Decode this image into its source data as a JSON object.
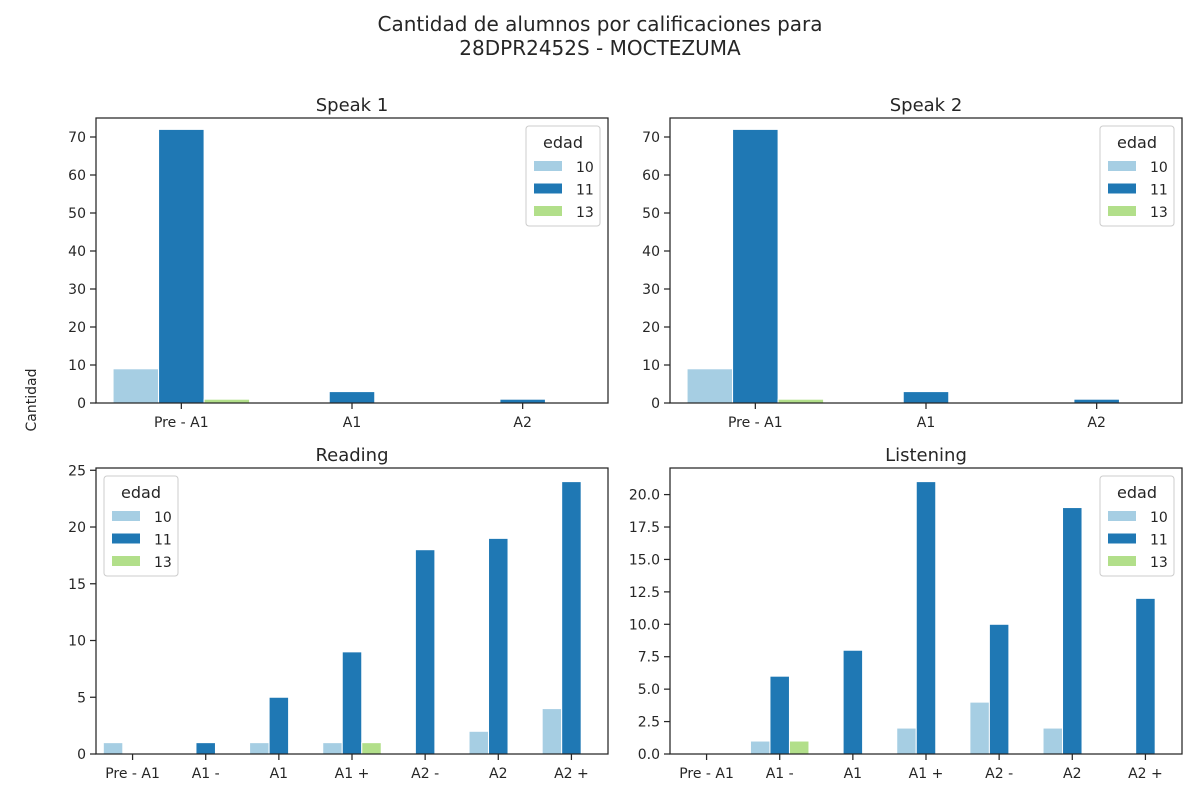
{
  "title_line1": "Cantidad de alumnos por calificaciones para",
  "title_line2": "28DPR2452S - MOCTEZUMA",
  "shared_ylabel": "Cantidad",
  "colors": {
    "10": "#a6cee3",
    "11": "#1f78b4",
    "13": "#b2df8a"
  },
  "chart_data": [
    {
      "type": "bar",
      "title": "Speak 1",
      "categories": [
        "Pre - A1",
        "A1",
        "A2"
      ],
      "ylim": [
        0,
        75
      ],
      "yticks": [
        0,
        10,
        20,
        30,
        40,
        50,
        60,
        70
      ],
      "legend": {
        "title": "edad",
        "placement": "upper-right"
      },
      "series": [
        {
          "name": "10",
          "values": [
            9,
            0,
            0
          ]
        },
        {
          "name": "11",
          "values": [
            72,
            3,
            1
          ]
        },
        {
          "name": "13",
          "values": [
            1,
            0,
            0
          ]
        }
      ]
    },
    {
      "type": "bar",
      "title": "Speak 2",
      "categories": [
        "Pre - A1",
        "A1",
        "A2"
      ],
      "ylim": [
        0,
        75
      ],
      "yticks": [
        0,
        10,
        20,
        30,
        40,
        50,
        60,
        70
      ],
      "legend": {
        "title": "edad",
        "placement": "upper-right"
      },
      "series": [
        {
          "name": "10",
          "values": [
            9,
            0,
            0
          ]
        },
        {
          "name": "11",
          "values": [
            72,
            3,
            1
          ]
        },
        {
          "name": "13",
          "values": [
            1,
            0,
            0
          ]
        }
      ]
    },
    {
      "type": "bar",
      "title": "Reading",
      "categories": [
        "Pre - A1",
        "A1 -",
        "A1",
        "A1 +",
        "A2 -",
        "A2",
        "A2 +"
      ],
      "ylim": [
        0,
        25.2
      ],
      "yticks": [
        0,
        5,
        10,
        15,
        20,
        25
      ],
      "legend": {
        "title": "edad",
        "placement": "upper-left"
      },
      "series": [
        {
          "name": "10",
          "values": [
            1,
            0,
            1,
            1,
            0,
            2,
            4
          ]
        },
        {
          "name": "11",
          "values": [
            0,
            1,
            5,
            9,
            18,
            19,
            24
          ]
        },
        {
          "name": "13",
          "values": [
            0,
            0,
            0,
            1,
            0,
            0,
            0
          ]
        }
      ]
    },
    {
      "type": "bar",
      "title": "Listening",
      "categories": [
        "Pre - A1",
        "A1 -",
        "A1",
        "A1 +",
        "A2 -",
        "A2",
        "A2 +"
      ],
      "ylim": [
        0,
        22.05
      ],
      "yticks": [
        0.0,
        2.5,
        5.0,
        7.5,
        10.0,
        12.5,
        15.0,
        17.5,
        20.0
      ],
      "ytick_labels": [
        "0.0",
        "2.5",
        "5.0",
        "7.5",
        "10.0",
        "12.5",
        "15.0",
        "17.5",
        "20.0"
      ],
      "legend": {
        "title": "edad",
        "placement": "upper-right"
      },
      "series": [
        {
          "name": "10",
          "values": [
            0,
            1,
            0,
            2,
            4,
            2,
            0
          ]
        },
        {
          "name": "11",
          "values": [
            0,
            6,
            8,
            21,
            10,
            19,
            12
          ]
        },
        {
          "name": "13",
          "values": [
            0,
            1,
            0,
            0,
            0,
            0,
            0
          ]
        }
      ]
    }
  ]
}
